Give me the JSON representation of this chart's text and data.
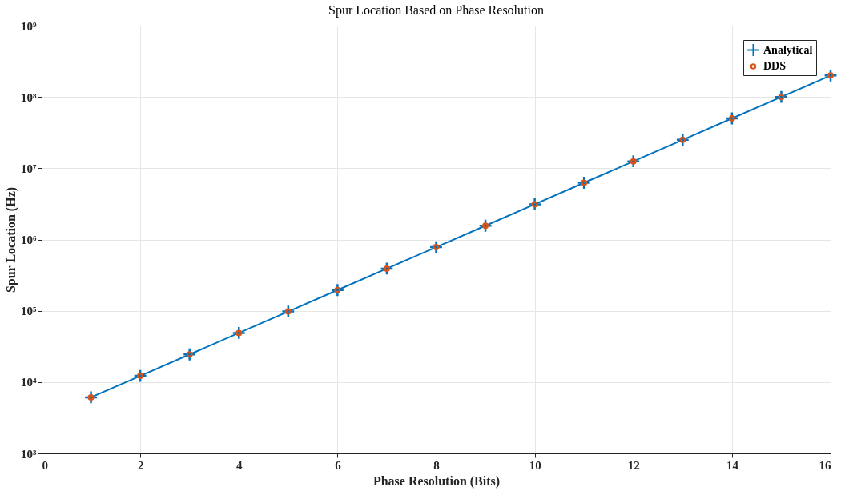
{
  "chart_data": {
    "type": "line",
    "title": "Spur Location Based on Phase Resolution",
    "xlabel": "Phase Resolution (Bits)",
    "ylabel": "Spur Location (Hz)",
    "x": [
      1,
      2,
      3,
      4,
      5,
      6,
      7,
      8,
      9,
      10,
      11,
      12,
      13,
      14,
      15,
      16
    ],
    "series": [
      {
        "name": "Analytical",
        "color": "#0072bd",
        "marker": "cross",
        "values": [
          6104,
          12207,
          24414,
          48828,
          97656,
          195313,
          390625,
          781250,
          1562500,
          3125000,
          6250000,
          12500000,
          25000000,
          50000000,
          100000000,
          200000000
        ]
      },
      {
        "name": "DDS",
        "type": "scatter",
        "color": "#d95319",
        "marker": "circle",
        "values": [
          6104,
          12207,
          24414,
          48828,
          97656,
          195313,
          390625,
          781250,
          1562500,
          3125000,
          6250000,
          12500000,
          25000000,
          50000000,
          100000000,
          200000000
        ]
      }
    ],
    "xlim": [
      0,
      16
    ],
    "xticks": [
      0,
      2,
      4,
      6,
      8,
      10,
      12,
      14,
      16
    ],
    "ylim": [
      1000,
      1000000000
    ],
    "yticks": [
      {
        "value": 1000,
        "label": "10³"
      },
      {
        "value": 10000,
        "label": "10⁴"
      },
      {
        "value": 100000,
        "label": "10⁵"
      },
      {
        "value": 1000000,
        "label": "10⁶"
      },
      {
        "value": 10000000,
        "label": "10⁷"
      },
      {
        "value": 100000000,
        "label": "10⁸"
      },
      {
        "value": 1000000000,
        "label": "10⁹"
      }
    ],
    "log": "y",
    "grid": true,
    "legend": "top right"
  }
}
